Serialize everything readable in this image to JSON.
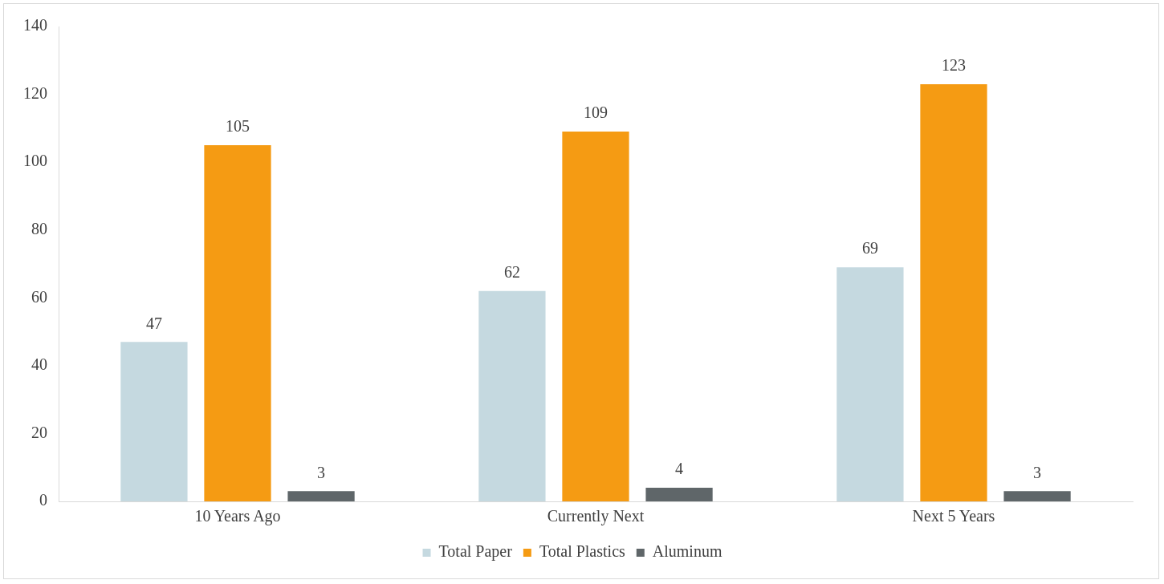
{
  "chart_data": {
    "type": "bar",
    "categories": [
      "10 Years Ago",
      "Currently Next",
      "Next 5 Years"
    ],
    "series": [
      {
        "name": "Total Paper",
        "color": "#c5d9e0",
        "values": [
          47,
          62,
          69
        ]
      },
      {
        "name": "Total Plastics",
        "color": "#f59b13",
        "values": [
          105,
          109,
          123
        ]
      },
      {
        "name": "Aluminum",
        "color": "#5f6669",
        "values": [
          3,
          4,
          3
        ]
      }
    ],
    "ylim": [
      0,
      140
    ],
    "yticks": [
      0,
      20,
      40,
      60,
      80,
      100,
      120,
      140
    ],
    "grid": false,
    "legend": "bottom",
    "data_labels": true
  }
}
